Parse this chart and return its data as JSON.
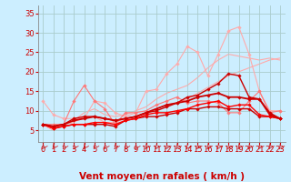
{
  "bg_color": "#cceeff",
  "grid_color": "#aacccc",
  "xlabel": "Vent moyen/en rafales ( km/h )",
  "xlim": [
    -0.5,
    23.5
  ],
  "ylim": [
    2,
    37
  ],
  "yticks": [
    5,
    10,
    15,
    20,
    25,
    30,
    35
  ],
  "xticks": [
    0,
    1,
    2,
    3,
    4,
    5,
    6,
    7,
    8,
    9,
    10,
    11,
    12,
    13,
    14,
    15,
    16,
    17,
    18,
    19,
    20,
    21,
    22,
    23
  ],
  "series": [
    {
      "x": [
        0,
        1,
        2,
        3,
        4,
        5,
        6,
        7,
        8,
        9,
        10,
        11,
        12,
        13,
        14,
        15,
        16,
        17,
        18,
        19,
        20,
        21,
        22,
        23
      ],
      "y": [
        6.5,
        5.0,
        6.5,
        7.0,
        8.5,
        8.5,
        7.0,
        7.0,
        8.0,
        8.5,
        9.5,
        10.5,
        11.5,
        12.0,
        13.0,
        14.5,
        16.0,
        17.5,
        19.0,
        20.0,
        21.0,
        22.0,
        23.0,
        23.5
      ],
      "color": "#ffaaaa",
      "lw": 0.8,
      "marker": null,
      "zorder": 1
    },
    {
      "x": [
        0,
        1,
        2,
        3,
        4,
        5,
        6,
        7,
        8,
        9,
        10,
        11,
        12,
        13,
        14,
        15,
        16,
        17,
        18,
        19,
        20,
        21,
        22,
        23
      ],
      "y": [
        6.5,
        5.0,
        6.5,
        7.5,
        9.5,
        10.5,
        9.0,
        8.5,
        9.0,
        10.0,
        11.0,
        13.0,
        14.5,
        15.5,
        16.5,
        18.5,
        21.0,
        23.0,
        24.5,
        24.0,
        23.5,
        23.0,
        23.5,
        23.0
      ],
      "color": "#ffaaaa",
      "lw": 0.8,
      "marker": null,
      "zorder": 1
    },
    {
      "x": [
        0,
        1,
        2,
        3,
        4,
        5,
        6,
        7,
        8,
        9,
        10,
        11,
        12,
        13,
        14,
        15,
        16,
        17,
        18,
        19,
        20,
        21,
        22,
        23
      ],
      "y": [
        12.5,
        9.0,
        8.0,
        8.0,
        8.0,
        12.5,
        12.0,
        9.5,
        8.5,
        9.5,
        15.0,
        15.5,
        19.5,
        22.0,
        26.5,
        25.0,
        19.0,
        24.5,
        30.5,
        31.5,
        24.5,
        15.0,
        10.0,
        10.0
      ],
      "color": "#ffaaaa",
      "lw": 0.8,
      "marker": "D",
      "ms": 1.8,
      "zorder": 2
    },
    {
      "x": [
        0,
        1,
        2,
        3,
        4,
        5,
        6,
        7,
        8,
        9,
        10,
        11,
        12,
        13,
        14,
        15,
        16,
        17,
        18,
        19,
        20,
        21,
        22,
        23
      ],
      "y": [
        6.5,
        6.5,
        6.5,
        12.5,
        16.5,
        12.5,
        10.5,
        6.5,
        9.5,
        9.5,
        10.0,
        11.5,
        12.5,
        13.5,
        12.0,
        12.5,
        12.5,
        12.0,
        9.5,
        9.5,
        12.5,
        15.0,
        9.5,
        10.0
      ],
      "color": "#ff7777",
      "lw": 0.8,
      "marker": "D",
      "ms": 1.8,
      "zorder": 2
    },
    {
      "x": [
        0,
        1,
        2,
        3,
        4,
        5,
        6,
        7,
        8,
        9,
        10,
        11,
        12,
        13,
        14,
        15,
        16,
        17,
        18,
        19,
        20,
        21,
        22,
        23
      ],
      "y": [
        6.5,
        6.0,
        6.5,
        8.0,
        8.5,
        8.5,
        8.0,
        7.5,
        8.0,
        8.5,
        9.5,
        10.0,
        11.0,
        12.0,
        13.5,
        14.0,
        15.5,
        17.0,
        19.5,
        19.0,
        13.5,
        13.0,
        9.5,
        8.0
      ],
      "color": "#cc0000",
      "lw": 1.0,
      "marker": "D",
      "ms": 1.8,
      "zorder": 3
    },
    {
      "x": [
        0,
        1,
        2,
        3,
        4,
        5,
        6,
        7,
        8,
        9,
        10,
        11,
        12,
        13,
        14,
        15,
        16,
        17,
        18,
        19,
        20,
        21,
        22,
        23
      ],
      "y": [
        6.5,
        5.5,
        6.0,
        6.5,
        6.5,
        6.5,
        6.5,
        6.0,
        7.5,
        8.0,
        8.5,
        8.5,
        9.0,
        9.5,
        10.5,
        10.5,
        11.0,
        11.0,
        10.5,
        10.5,
        10.5,
        8.5,
        8.5,
        8.0
      ],
      "color": "#cc0000",
      "lw": 1.0,
      "marker": "D",
      "ms": 1.8,
      "zorder": 3
    },
    {
      "x": [
        0,
        1,
        2,
        3,
        4,
        5,
        6,
        7,
        8,
        9,
        10,
        11,
        12,
        13,
        14,
        15,
        16,
        17,
        18,
        19,
        20,
        21,
        22,
        23
      ],
      "y": [
        6.5,
        5.5,
        6.0,
        6.5,
        6.5,
        7.0,
        7.0,
        6.5,
        7.5,
        8.0,
        9.0,
        9.5,
        9.5,
        10.0,
        10.5,
        11.5,
        12.0,
        12.5,
        11.0,
        11.5,
        11.5,
        9.0,
        8.5,
        8.0
      ],
      "color": "#ff0000",
      "lw": 1.0,
      "marker": "D",
      "ms": 1.8,
      "zorder": 3
    },
    {
      "x": [
        0,
        1,
        2,
        3,
        4,
        5,
        6,
        7,
        8,
        9,
        10,
        11,
        12,
        13,
        14,
        15,
        16,
        17,
        18,
        19,
        20,
        21,
        22,
        23
      ],
      "y": [
        6.5,
        6.0,
        6.5,
        7.5,
        8.0,
        8.5,
        8.0,
        7.5,
        8.0,
        8.5,
        9.5,
        10.5,
        11.5,
        12.0,
        12.5,
        13.5,
        14.0,
        14.5,
        13.5,
        13.5,
        13.0,
        13.0,
        9.0,
        8.0
      ],
      "color": "#cc0000",
      "lw": 1.3,
      "marker": "D",
      "ms": 1.8,
      "zorder": 3
    }
  ],
  "xlabel_color": "#cc0000",
  "xlabel_fontsize": 7.5,
  "tick_label_color": "#cc0000",
  "tick_label_fontsize": 6,
  "arrow_color": "#cc0000"
}
